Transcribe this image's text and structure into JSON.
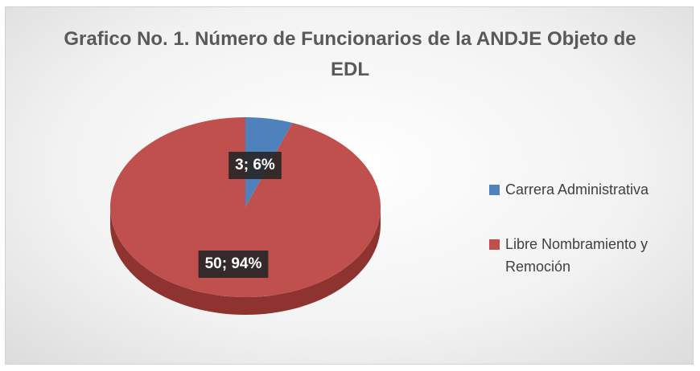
{
  "chart_data": {
    "type": "pie",
    "title": "Grafico No. 1. Número de Funcionarios de la ANDJE Objeto de EDL",
    "categories": [
      "Carrera Administrativa",
      "Libre Nombramiento y Remoción"
    ],
    "values": [
      3,
      50
    ],
    "value_labels": [
      "3; 6%",
      "50; 94%"
    ],
    "colors": [
      "#4f81bd",
      "#c0504d"
    ],
    "legend": "right"
  }
}
